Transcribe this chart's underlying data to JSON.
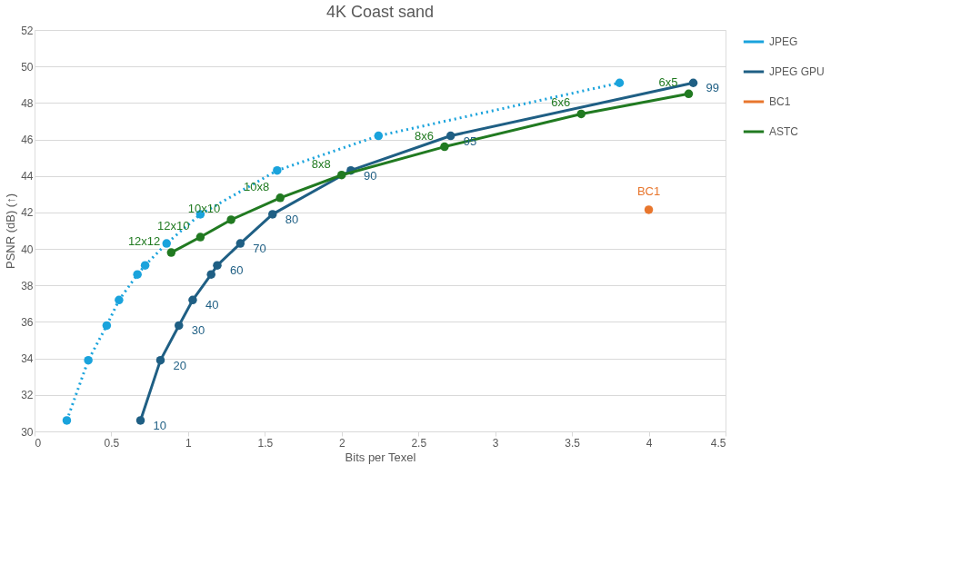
{
  "chart_data": {
    "type": "line",
    "title": "4K Coast sand",
    "xlabel": "Bits per Texel",
    "ylabel": "PSNR (dB) (↑)",
    "xlim": [
      0,
      4.5
    ],
    "xticks": [
      0,
      0.5,
      1,
      1.5,
      2,
      2.5,
      3,
      3.5,
      4,
      4.5
    ],
    "ylim": [
      30,
      52
    ],
    "yticks": [
      30,
      32,
      34,
      36,
      38,
      40,
      42,
      44,
      46,
      48,
      50,
      52
    ],
    "grid": "y",
    "legend": "right",
    "marker": "circle",
    "series": [
      {
        "name": "JPEG",
        "color": "#1aa3dc",
        "line_style": "dotted",
        "x": [
          0.21,
          0.35,
          0.47,
          0.55,
          0.67,
          0.72,
          0.86,
          1.08,
          1.58,
          2.24,
          3.81
        ],
        "values": [
          30.6,
          33.9,
          35.8,
          37.2,
          38.6,
          39.1,
          40.3,
          41.9,
          44.3,
          46.2,
          49.1
        ]
      },
      {
        "name": "JPEG GPU",
        "color": "#1f5f84",
        "line_style": "solid",
        "x": [
          0.69,
          0.82,
          0.94,
          1.03,
          1.15,
          1.19,
          1.34,
          1.55,
          2.06,
          2.71,
          4.29
        ],
        "values": [
          30.6,
          33.9,
          35.8,
          37.2,
          38.6,
          39.1,
          40.3,
          41.9,
          44.3,
          46.2,
          49.1
        ]
      },
      {
        "name": "BC1",
        "color": "#e8762d",
        "line_style": "solid",
        "x": [
          4.0
        ],
        "values": [
          42.15
        ]
      },
      {
        "name": "ASTC",
        "color": "#217a21",
        "line_style": "solid",
        "x": [
          0.89,
          1.08,
          1.28,
          1.6,
          2.0,
          2.67,
          3.56,
          4.26
        ],
        "values": [
          39.8,
          40.65,
          41.6,
          42.8,
          44.05,
          45.6,
          47.4,
          48.5
        ]
      }
    ],
    "annotations": [
      {
        "text": "10",
        "x": 0.69,
        "y": 30.6
      },
      {
        "text": "20",
        "x": 0.82,
        "y": 33.9
      },
      {
        "text": "30",
        "x": 0.94,
        "y": 35.8
      },
      {
        "text": "40",
        "x": 1.03,
        "y": 37.2
      },
      {
        "text": "60",
        "x": 1.19,
        "y": 39.1
      },
      {
        "text": "70",
        "x": 1.34,
        "y": 40.3
      },
      {
        "text": "80",
        "x": 1.55,
        "y": 41.9
      },
      {
        "text": "90",
        "x": 2.06,
        "y": 44.3
      },
      {
        "text": "95",
        "x": 2.71,
        "y": 46.2
      },
      {
        "text": "99",
        "x": 4.29,
        "y": 49.1
      },
      {
        "text": "BC1",
        "x": 4.0,
        "y": 42.15
      },
      {
        "text": "12x12",
        "x": 0.89,
        "y": 39.8
      },
      {
        "text": "12x10",
        "x": 1.08,
        "y": 40.65
      },
      {
        "text": "10x10",
        "x": 1.28,
        "y": 41.6
      },
      {
        "text": "10x8",
        "x": 1.6,
        "y": 42.8
      },
      {
        "text": "8x8",
        "x": 2.0,
        "y": 44.05
      },
      {
        "text": "8x6",
        "x": 2.67,
        "y": 45.6
      },
      {
        "text": "6x6",
        "x": 3.56,
        "y": 47.4
      },
      {
        "text": "6x5",
        "x": 4.26,
        "y": 48.5
      }
    ]
  }
}
